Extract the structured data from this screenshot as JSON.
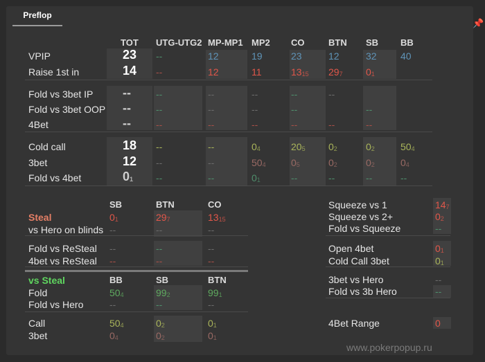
{
  "tab": {
    "label": "Preflop"
  },
  "columns": [
    "TOT",
    "UTG-UTG2",
    "MP-MP1",
    "MP2",
    "CO",
    "BTN",
    "SB",
    "BB"
  ],
  "sec1": {
    "vpip": {
      "label": "VPIP",
      "tot": "23",
      "utg": "--",
      "mp": "12",
      "mp2": "19",
      "co": "23",
      "btn": "12",
      "sb": "32",
      "bb": "40"
    },
    "rfi": {
      "label": "Raise 1st in",
      "tot": "14",
      "utg": "--",
      "mp": "12",
      "mp2": "11",
      "co": "13",
      "co_s": "15",
      "btn": "29",
      "btn_s": "7",
      "sb": "0",
      "sb_s": "1"
    }
  },
  "sec2": {
    "fv3ip": {
      "label": "Fold vs 3bet IP",
      "tot": "--"
    },
    "fv3oop": {
      "label": "Fold vs 3bet OOP",
      "tot": "--"
    },
    "bet4": {
      "label": "4Bet",
      "tot": "--"
    },
    "dash": "--"
  },
  "sec3": {
    "cc": {
      "label": "Cold call",
      "tot": "18",
      "utg": "--",
      "mp": "--",
      "mp2": "0",
      "mp2_s": "4",
      "co": "20",
      "co_s": "5",
      "btn": "0",
      "btn_s": "2",
      "sb": "0",
      "sb_s": "2",
      "bb": "50",
      "bb_s": "4"
    },
    "b3": {
      "label": "3bet",
      "tot": "12",
      "utg": "--",
      "mp": "--",
      "mp2": "50",
      "mp2_s": "4",
      "co": "0",
      "co_s": "5",
      "btn": "0",
      "btn_s": "2",
      "sb": "0",
      "sb_s": "2",
      "bb": "0",
      "bb_s": "4"
    },
    "fv4": {
      "label": "Fold vs 4bet",
      "tot": "0",
      "tot_s": "1",
      "utg": "--",
      "mp": "--",
      "mp2": "0",
      "mp2_s": "1",
      "co": "--",
      "btn": "--",
      "sb": "--",
      "bb": "--"
    }
  },
  "steal": {
    "cols": [
      "SB",
      "BTN",
      "CO"
    ],
    "steal": {
      "label": "Steal",
      "sb": "0",
      "sb_s": "1",
      "btn": "29",
      "btn_s": "7",
      "co": "13",
      "co_s": "15"
    },
    "blinds": {
      "label": "vs Hero on blinds",
      "v": "--"
    },
    "fresteal": {
      "label": "Fold vs ReSteal"
    },
    "b4resteal": {
      "label": "4bet vs ReSteal"
    }
  },
  "vssteal": {
    "title": "vs Steal",
    "cols": [
      "BB",
      "SB",
      "BTN"
    ],
    "fold": {
      "label": "Fold",
      "bb": "50",
      "bb_s": "4",
      "sb": "99",
      "sb_s": "2",
      "btn": "99",
      "btn_s": "1"
    },
    "fvh": {
      "label": "Fold vs Hero",
      "v": "--"
    },
    "call": {
      "label": "Call",
      "bb": "50",
      "bb_s": "4",
      "sb": "0",
      "sb_s": "2",
      "btn": "0",
      "btn_s": "1"
    },
    "bet3": {
      "label": "3bet",
      "bb": "0",
      "bb_s": "4",
      "sb": "0",
      "sb_s": "2",
      "btn": "0",
      "btn_s": "1"
    }
  },
  "right": {
    "sq1": {
      "label": "Squeeze vs 1",
      "v": "14",
      "s": "7"
    },
    "sq2": {
      "label": "Squeeze vs 2+",
      "v": "0",
      "s": "2"
    },
    "fvsq": {
      "label": "Fold vs Squeeze",
      "v": "--"
    },
    "open4": {
      "label": "Open 4bet",
      "v": "0",
      "s": "1"
    },
    "cc3": {
      "label": "Cold Call 3bet",
      "v": "0",
      "s": "1"
    },
    "b3vh": {
      "label": "3bet vs Hero",
      "v": "--"
    },
    "fv3bh": {
      "label": "Fold vs 3b Hero",
      "v": "--"
    },
    "range4": {
      "label": "4Bet Range",
      "v": "0"
    }
  },
  "watermark": "www.pokerpopup.ru"
}
